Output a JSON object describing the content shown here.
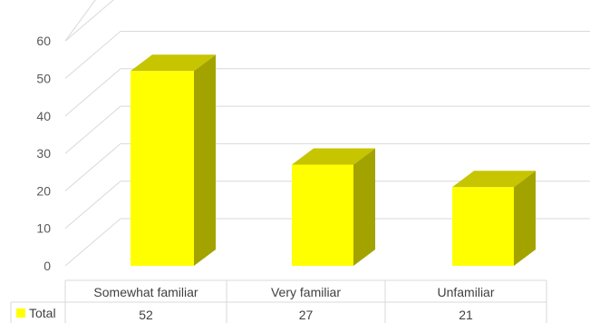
{
  "chart_data": {
    "type": "bar",
    "style": "3d-column-with-data-table",
    "categories": [
      "Somewhat familiar",
      "Very familiar",
      "Unfamiliar"
    ],
    "series": [
      {
        "name": "Total",
        "values": [
          52,
          27,
          21
        ],
        "color": "#ffff00"
      }
    ],
    "title": "",
    "xlabel": "",
    "ylabel": "",
    "ylim": [
      0,
      60
    ],
    "yticks": [
      0,
      10,
      20,
      30,
      40,
      50,
      60
    ],
    "grid": true,
    "legend": "data-table-left"
  },
  "colors": {
    "bar_front": "#ffff00",
    "bar_top": "#c7c400",
    "bar_side": "#a3a300",
    "grid": "#d9d9d9",
    "axis_text": "#595959"
  }
}
